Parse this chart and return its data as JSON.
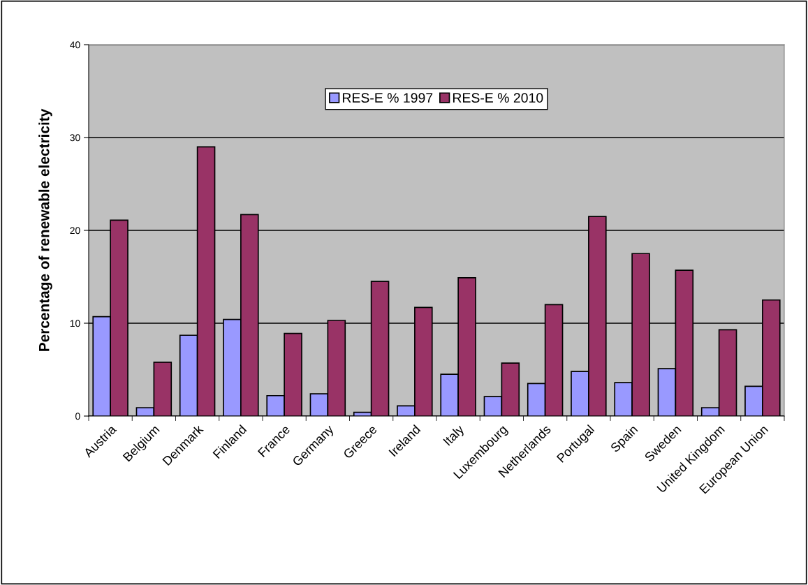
{
  "chart_data": {
    "type": "bar",
    "ylabel": "Percentage of renewable electricity",
    "categories": [
      "Austria",
      "Belgium",
      "Denmark",
      "Finland",
      "France",
      "Germany",
      "Greece",
      "Ireland",
      "Italy",
      "Luxembourg",
      "Netherlands",
      "Portugal",
      "Spain",
      "Sweden",
      "United Kingdom",
      "European Union"
    ],
    "series": [
      {
        "name": "RES-E % 1997",
        "color": "#9999ff",
        "values": [
          10.7,
          0.9,
          8.7,
          10.4,
          2.2,
          2.4,
          0.4,
          1.1,
          4.5,
          2.1,
          3.5,
          4.8,
          3.6,
          5.1,
          0.9,
          3.2
        ]
      },
      {
        "name": "RES-E % 2010",
        "color": "#993366",
        "values": [
          21.1,
          5.8,
          29.0,
          21.7,
          8.9,
          10.3,
          14.5,
          11.7,
          14.9,
          5.7,
          12.0,
          21.5,
          17.5,
          15.7,
          9.3,
          12.5
        ]
      }
    ],
    "ylim": [
      0,
      40
    ],
    "yticks": [
      0,
      10,
      20,
      30,
      40
    ],
    "grid": "y",
    "legend": "top"
  }
}
